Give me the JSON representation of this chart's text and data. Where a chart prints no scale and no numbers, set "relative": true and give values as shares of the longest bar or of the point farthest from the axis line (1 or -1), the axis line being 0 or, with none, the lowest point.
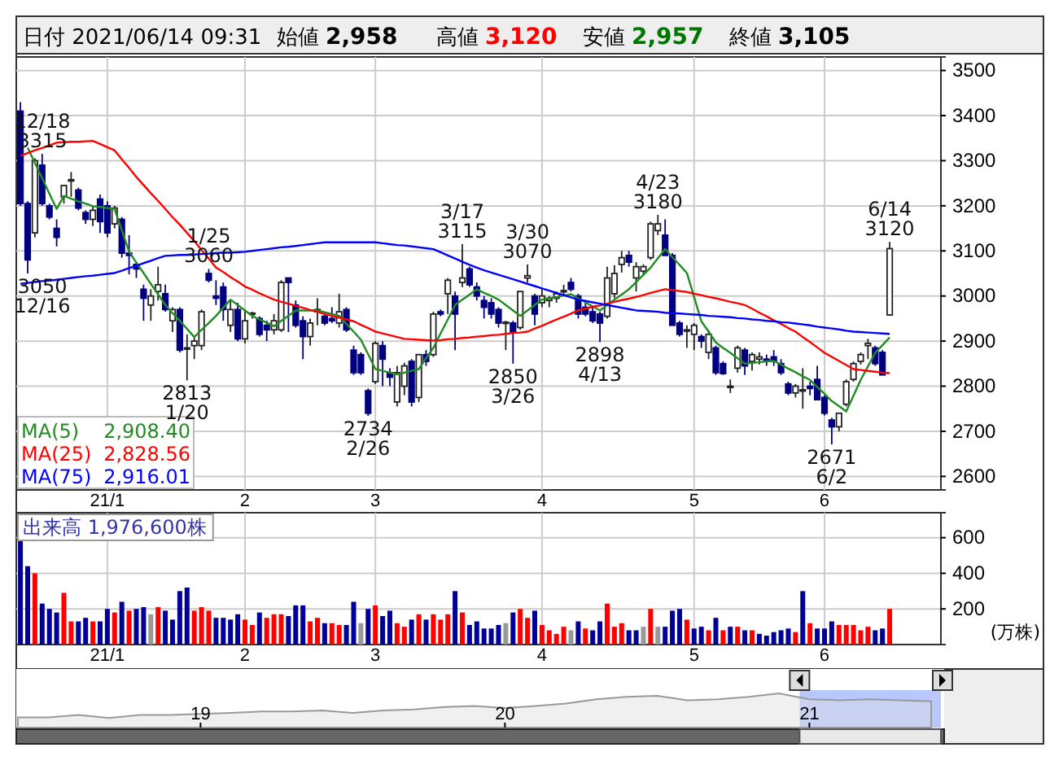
{
  "chart_data": [
    {
      "type": "candlestick",
      "title": "日付 2021/06/14 09:31",
      "colors": [
        "#000080",
        "#000080",
        "#ffffff",
        "#000080",
        "#000080",
        "#000080",
        "#ffffff",
        "#ffffff",
        "#000080",
        "#000080",
        "#ffffff",
        "#000080",
        "#000080",
        "#ffffff",
        "#000080",
        "#000080",
        "#000080",
        "#000080",
        "#ffffff",
        "#ffffff",
        "#000080",
        "#ffffff",
        "#000080",
        "#ffffff",
        "#ffffff",
        "#ffffff",
        "#000080",
        "#000080",
        "#000080",
        "#ffffff",
        "#000080",
        "#ffffff",
        "#ffffff",
        "#000080",
        "#000080",
        "#ffffff",
        "#ffffff",
        "#000080",
        "#000080",
        "#000080",
        "#ffffff",
        "#ffffff",
        "#000080",
        "#000080",
        "#ffffff",
        "#000080",
        "#000080",
        "#000080",
        "#000080",
        "#ffffff",
        "#000080",
        "#000080",
        "#ffffff",
        "#ffffff",
        "#000080",
        "#ffffff",
        "#000080",
        "#ffffff",
        "#000080",
        "#ffffff",
        "#000080",
        "#ffffff",
        "#000080",
        "#000080",
        "#000080",
        "#000080",
        "#000080",
        "#ffffff",
        "#000080",
        "#ffffff",
        "#ffffff",
        "#000080",
        "#ffffff",
        "#ffffff",
        "#ffffff",
        "#ffffff",
        "#000080",
        "#000080",
        "#000080",
        "#000080",
        "#000080",
        "#ffffff",
        "#ffffff",
        "#ffffff",
        "#000080",
        "#ffffff",
        "#ffffff",
        "#ffffff",
        "#ffffff",
        "#000080",
        "#000080",
        "#000080",
        "#ffffff",
        "#ffffff",
        "#000080",
        "#ffffff",
        "#000080",
        "#000080",
        "#ffffff",
        "#ffffff",
        "#000080",
        "#ffffff",
        "#ffffff",
        "#000080",
        "#000080",
        "#000080",
        "#000080",
        "#ffffff",
        "#ffffff",
        "#000080",
        "#000080",
        "#000080",
        "#000080",
        "#ffffff",
        "#ffffff",
        "#ffffff",
        "#ffffff",
        "#ffffff",
        "#000080",
        "#000080",
        "#ffffff"
      ],
      "categories": [
        null,
        null,
        null,
        null,
        null,
        null,
        null,
        null,
        null,
        null,
        null,
        null,
        "21/1",
        null,
        null,
        null,
        null,
        null,
        null,
        null,
        null,
        null,
        null,
        null,
        null,
        null,
        null,
        null,
        null,
        null,
        null,
        "2",
        null,
        null,
        null,
        null,
        null,
        null,
        null,
        null,
        null,
        null,
        null,
        null,
        null,
        null,
        null,
        null,
        null,
        "3",
        null,
        null,
        null,
        null,
        null,
        null,
        null,
        null,
        null,
        null,
        null,
        null,
        null,
        null,
        null,
        null,
        null,
        null,
        null,
        null,
        null,
        null,
        "4",
        null,
        null,
        null,
        null,
        null,
        null,
        null,
        null,
        null,
        null,
        null,
        null,
        null,
        null,
        null,
        null,
        null,
        null,
        null,
        null,
        "5",
        null,
        null,
        null,
        null,
        null,
        null,
        null,
        null,
        null,
        null,
        null,
        null,
        null,
        null,
        null,
        null,
        null,
        "6",
        null,
        null,
        null,
        null,
        null,
        null,
        null,
        null,
        null
      ],
      "ohlc": [
        [
          3410,
          3430,
          3200,
          3205
        ],
        [
          3205,
          3210,
          3050,
          3080
        ],
        [
          3140,
          3305,
          3130,
          3300
        ],
        [
          3290,
          3315,
          3200,
          3205
        ],
        [
          3200,
          3205,
          3170,
          3175
        ],
        [
          3150,
          3170,
          3110,
          3130
        ],
        [
          3220,
          3245,
          3205,
          3245
        ],
        [
          3255,
          3275,
          3220,
          3258
        ],
        [
          3235,
          3240,
          3190,
          3195
        ],
        [
          3185,
          3190,
          3160,
          3170
        ],
        [
          3170,
          3200,
          3155,
          3190
        ],
        [
          3215,
          3225,
          3140,
          3165
        ],
        [
          3200,
          3210,
          3130,
          3140
        ],
        [
          3160,
          3200,
          3150,
          3195
        ],
        [
          3170,
          3175,
          3085,
          3095
        ],
        [
          3095,
          3135,
          3048,
          3090
        ],
        [
          3070,
          3075,
          3040,
          3060
        ],
        [
          3015,
          3025,
          2945,
          2995
        ],
        [
          2980,
          3015,
          2945,
          3000
        ],
        [
          3010,
          3065,
          2990,
          3025
        ],
        [
          3005,
          3025,
          2965,
          2970
        ],
        [
          2945,
          2975,
          2920,
          2970
        ],
        [
          2970,
          2975,
          2875,
          2880
        ],
        [
          2885,
          2915,
          2813,
          2885
        ],
        [
          2890,
          2910,
          2860,
          2900
        ],
        [
          2890,
          2970,
          2880,
          2965
        ],
        [
          3050,
          3060,
          3030,
          3035
        ],
        [
          3000,
          3035,
          2980,
          2995
        ],
        [
          3020,
          3030,
          2945,
          2970
        ],
        [
          2935,
          2990,
          2920,
          2970
        ],
        [
          2970,
          2985,
          2900,
          2905
        ],
        [
          2905,
          2970,
          2895,
          2945
        ],
        [
          2960,
          2965,
          2950,
          2962
        ],
        [
          2950,
          2955,
          2910,
          2915
        ],
        [
          2935,
          2945,
          2900,
          2925
        ],
        [
          2925,
          2960,
          2915,
          2945
        ],
        [
          2925,
          3035,
          2920,
          3030
        ],
        [
          3040,
          3040,
          2920,
          3030
        ],
        [
          2980,
          2990,
          2930,
          2935
        ],
        [
          2945,
          2955,
          2860,
          2910
        ],
        [
          2910,
          2950,
          2890,
          2940
        ],
        [
          2965,
          2995,
          2935,
          2970
        ],
        [
          2955,
          2960,
          2935,
          2940
        ],
        [
          2950,
          2975,
          2940,
          2945
        ],
        [
          2940,
          3005,
          2930,
          2965
        ],
        [
          2970,
          2975,
          2920,
          2925
        ],
        [
          2880,
          2890,
          2825,
          2830
        ],
        [
          2870,
          2875,
          2825,
          2830
        ],
        [
          2790,
          2795,
          2734,
          2740
        ],
        [
          2810,
          2900,
          2805,
          2895
        ],
        [
          2890,
          2900,
          2800,
          2860
        ],
        [
          2830,
          2840,
          2800,
          2820
        ],
        [
          2765,
          2845,
          2755,
          2830
        ],
        [
          2800,
          2852,
          2780,
          2845
        ],
        [
          2855,
          2860,
          2755,
          2765
        ],
        [
          2775,
          2870,
          2765,
          2870
        ],
        [
          2870,
          2880,
          2845,
          2855
        ],
        [
          2870,
          2965,
          2865,
          2960
        ],
        [
          2965,
          2970,
          2955,
          2960
        ],
        [
          3005,
          3040,
          2960,
          3035
        ],
        [
          3000,
          3010,
          2880,
          2960
        ],
        [
          3030,
          3115,
          3020,
          3040
        ],
        [
          3060,
          3065,
          3020,
          3025
        ],
        [
          3020,
          3030,
          2990,
          3000
        ],
        [
          2990,
          3000,
          2950,
          2975
        ],
        [
          2985,
          2995,
          2950,
          2960
        ],
        [
          2970,
          2975,
          2930,
          2940
        ],
        [
          2940,
          2945,
          2880,
          2942
        ],
        [
          2940,
          2945,
          2850,
          2920
        ],
        [
          2930,
          3010,
          2925,
          3010
        ],
        [
          3040,
          3070,
          3030,
          3045
        ],
        [
          3000,
          3005,
          2935,
          2960
        ],
        [
          2985,
          3015,
          2975,
          3000
        ],
        [
          2990,
          3000,
          2975,
          2995
        ],
        [
          2995,
          3010,
          2985,
          3005
        ],
        [
          3010,
          3025,
          3000,
          3012
        ],
        [
          3030,
          3040,
          3010,
          3015
        ],
        [
          3000,
          3005,
          2950,
          2960
        ],
        [
          2975,
          2985,
          2955,
          2960
        ],
        [
          2965,
          2975,
          2940,
          2945
        ],
        [
          2960,
          2965,
          2898,
          2940
        ],
        [
          2955,
          3065,
          2950,
          3040
        ],
        [
          3005,
          3068,
          2995,
          3050
        ],
        [
          3070,
          3100,
          3052,
          3085
        ],
        [
          3090,
          3100,
          3065,
          3075
        ],
        [
          3040,
          3075,
          3010,
          3065
        ],
        [
          3055,
          3070,
          3045,
          3065
        ],
        [
          3085,
          3165,
          3080,
          3160
        ],
        [
          3145,
          3180,
          3135,
          3160
        ],
        [
          3135,
          3170,
          3090,
          3090
        ],
        [
          3090,
          3095,
          2935,
          2935
        ],
        [
          2940,
          2945,
          2910,
          2915
        ],
        [
          2925,
          2935,
          2885,
          2925
        ],
        [
          2915,
          2940,
          2880,
          2935
        ],
        [
          2910,
          2915,
          2885,
          2900
        ],
        [
          2875,
          2925,
          2860,
          2915
        ],
        [
          2885,
          2890,
          2825,
          2830
        ],
        [
          2850,
          2855,
          2825,
          2828
        ],
        [
          2800,
          2815,
          2785,
          2800
        ],
        [
          2840,
          2890,
          2830,
          2885
        ],
        [
          2880,
          2885,
          2825,
          2845
        ],
        [
          2855,
          2875,
          2835,
          2870
        ],
        [
          2860,
          2875,
          2848,
          2865
        ],
        [
          2860,
          2870,
          2845,
          2855
        ],
        [
          2865,
          2880,
          2845,
          2855
        ],
        [
          2850,
          2860,
          2825,
          2830
        ],
        [
          2805,
          2810,
          2780,
          2785
        ],
        [
          2785,
          2805,
          2775,
          2800
        ],
        [
          2790,
          2840,
          2750,
          2792
        ],
        [
          2800,
          2810,
          2780,
          2795
        ],
        [
          2815,
          2845,
          2770,
          2770
        ],
        [
          2775,
          2780,
          2735,
          2740
        ],
        [
          2725,
          2730,
          2671,
          2710
        ],
        [
          2710,
          2740,
          2700,
          2740
        ],
        [
          2760,
          2815,
          2755,
          2810
        ],
        [
          2815,
          2855,
          2810,
          2850
        ],
        [
          2855,
          2875,
          2848,
          2870
        ],
        [
          2890,
          2905,
          2860,
          2895
        ],
        [
          2885,
          2890,
          2845,
          2850
        ],
        [
          2875,
          2880,
          2825,
          2825
        ],
        [
          2958,
          3120,
          2957,
          3105
        ]
      ],
      "series": [
        {
          "type": "line",
          "name": "MA(5) 2,908.40",
          "color": "#228b22",
          "values": [
            null,
            3329,
            3295,
            3261,
            3227,
            3193,
            3222,
            3216,
            3210,
            3205,
            3199,
            3197,
            3195,
            3193,
            3146,
            3098,
            3074,
            3051,
            3027,
            3004,
            2980,
            2962,
            2945,
            2927,
            2909,
            2925,
            2940,
            2956,
            2974,
            2992,
            2980,
            2968,
            2956,
            2948,
            2941,
            2933,
            2945,
            2956,
            2968,
            2968,
            2968,
            2968,
            2964,
            2960,
            2956,
            2938,
            2921,
            2903,
            2871,
            2838,
            2834,
            2830,
            2826,
            2830,
            2834,
            2838,
            2862,
            2885,
            2917,
            2948,
            2980,
            2992,
            3003,
            3015,
            3007,
            3000,
            2992,
            2980,
            2968,
            2956,
            2968,
            2980,
            2992,
            2995,
            2998,
            3001,
            3004,
            2995,
            2986,
            2977,
            2968,
            2980,
            2992,
            3003,
            3015,
            3031,
            3047,
            3063,
            3084,
            3104,
            3086,
            3069,
            3051,
            2998,
            2944,
            2921,
            2897,
            2885,
            2874,
            2862,
            2850,
            2852,
            2853,
            2855,
            2856,
            2848,
            2839,
            2831,
            2822,
            2814,
            2798,
            2783,
            2767,
            2756,
            2744,
            2779,
            2814,
            2844,
            2874,
            2891,
            2908
          ]
        },
        {
          "type": "line",
          "name": "MA(25) 2,828.56",
          "color": "#ff0000",
          "values": [
            3311,
            3317,
            3323,
            3328,
            3334,
            3340,
            3341,
            3342,
            3342,
            3343,
            3344,
            3337,
            3330,
            3323,
            3303,
            3284,
            3264,
            3246,
            3228,
            3211,
            3193,
            3175,
            3158,
            3140,
            3122,
            3102,
            3083,
            3063,
            3053,
            3042,
            3032,
            3021,
            3014,
            3006,
            2999,
            2992,
            2987,
            2983,
            2978,
            2974,
            2969,
            2965,
            2960,
            2956,
            2952,
            2948,
            2944,
            2936,
            2929,
            2921,
            2917,
            2913,
            2909,
            2905,
            2904,
            2903,
            2902,
            2901,
            2902,
            2904,
            2905,
            2907,
            2908,
            2910,
            2911,
            2913,
            2914,
            2916,
            2918,
            2919,
            2921,
            2928,
            2934,
            2941,
            2948,
            2954,
            2961,
            2968,
            2972,
            2976,
            2979,
            2983,
            2987,
            2991,
            2994,
            2998,
            3002,
            3007,
            3011,
            3015,
            3013,
            3011,
            3009,
            3005,
            3002,
            2998,
            2995,
            2991,
            2987,
            2984,
            2980,
            2972,
            2963,
            2955,
            2946,
            2938,
            2929,
            2921,
            2909,
            2898,
            2886,
            2874,
            2865,
            2856,
            2847,
            2838,
            2836,
            2834,
            2832,
            2830,
            2829
          ]
        },
        {
          "type": "line",
          "name": "MA(75) 2,916.01",
          "color": "#0000ff",
          "values": [
            3027,
            3029,
            3031,
            3033,
            3034,
            3036,
            3038,
            3040,
            3042,
            3044,
            3045,
            3047,
            3049,
            3051,
            3056,
            3062,
            3067,
            3073,
            3078,
            3084,
            3089,
            3090,
            3091,
            3091,
            3092,
            3093,
            3094,
            3095,
            3096,
            3096,
            3097,
            3098,
            3100,
            3102,
            3104,
            3106,
            3108,
            3109,
            3111,
            3113,
            3115,
            3117,
            3119,
            3119,
            3119,
            3119,
            3119,
            3119,
            3119,
            3119,
            3117,
            3115,
            3113,
            3112,
            3110,
            3108,
            3106,
            3104,
            3097,
            3090,
            3083,
            3076,
            3069,
            3063,
            3057,
            3052,
            3047,
            3042,
            3037,
            3032,
            3027,
            3022,
            3017,
            3012,
            3007,
            3002,
            2997,
            2992,
            2989,
            2986,
            2983,
            2980,
            2977,
            2974,
            2971,
            2968,
            2967,
            2966,
            2965,
            2963,
            2962,
            2961,
            2960,
            2959,
            2958,
            2956,
            2955,
            2954,
            2953,
            2951,
            2950,
            2948,
            2947,
            2945,
            2944,
            2942,
            2941,
            2939,
            2937,
            2935,
            2932,
            2930,
            2928,
            2926,
            2923,
            2921,
            2920,
            2919,
            2918,
            2917,
            2916
          ]
        }
      ],
      "ylim": [
        2570,
        3530
      ],
      "yticks": [
        2600,
        2700,
        2800,
        2900,
        3000,
        3100,
        3200,
        3300,
        3400,
        3500
      ],
      "grid": true,
      "legend": "bottom left",
      "annotations": [
        "始値 2,958",
        "高値 3,120",
        "安値 2,957",
        "終値 3,105",
        {
          "text": "12/18\n3315",
          "y": 3315
        },
        {
          "text": "3050\n12/16",
          "y": 3050
        },
        {
          "text": "1/25\n3060",
          "y": 3060
        },
        {
          "text": "2813\n1/20",
          "y": 2813
        },
        {
          "text": "2734\n2/26",
          "y": 2734
        },
        {
          "text": "3/17\n3115",
          "y": 3115
        },
        {
          "text": "3/30\n3070",
          "y": 3070
        },
        {
          "text": "2850\n3/26",
          "y": 2850
        },
        {
          "text": "2898\n4/13",
          "y": 2898
        },
        {
          "text": "4/23\n3180",
          "y": 3180
        },
        {
          "text": "2671\n6/2",
          "y": 2671
        },
        {
          "text": "6/14\n3120",
          "y": 3120
        }
      ]
    },
    {
      "type": "bar",
      "title": "出来高 1,976,600株",
      "ylabel": "(万株)",
      "categories": [
        null,
        null,
        null,
        null,
        null,
        null,
        null,
        null,
        null,
        null,
        null,
        null,
        "21/1",
        null,
        null,
        null,
        null,
        null,
        null,
        null,
        null,
        null,
        null,
        null,
        null,
        null,
        null,
        null,
        null,
        null,
        null,
        "2",
        null,
        null,
        null,
        null,
        null,
        null,
        null,
        null,
        null,
        null,
        null,
        null,
        null,
        null,
        null,
        null,
        null,
        "3",
        null,
        null,
        null,
        null,
        null,
        null,
        null,
        null,
        null,
        null,
        null,
        null,
        null,
        null,
        null,
        null,
        null,
        null,
        null,
        null,
        null,
        null,
        "4",
        null,
        null,
        null,
        null,
        null,
        null,
        null,
        null,
        null,
        null,
        null,
        null,
        null,
        null,
        null,
        null,
        null,
        null,
        null,
        null,
        "5",
        null,
        null,
        null,
        null,
        null,
        null,
        null,
        null,
        null,
        null,
        null,
        null,
        null,
        null,
        null,
        null,
        null,
        "6",
        null,
        null,
        null,
        null,
        null,
        null,
        null,
        null,
        null
      ],
      "values": [
        600,
        440,
        400,
        230,
        200,
        180,
        290,
        130,
        130,
        150,
        130,
        130,
        200,
        180,
        240,
        190,
        200,
        210,
        170,
        210,
        190,
        140,
        300,
        320,
        190,
        210,
        190,
        150,
        150,
        140,
        170,
        140,
        110,
        180,
        150,
        170,
        170,
        160,
        220,
        220,
        130,
        150,
        120,
        120,
        110,
        110,
        240,
        120,
        200,
        220,
        160,
        190,
        120,
        100,
        140,
        170,
        140,
        170,
        140,
        170,
        300,
        180,
        110,
        130,
        90,
        90,
        110,
        120,
        180,
        200,
        150,
        190,
        110,
        80,
        60,
        100,
        80,
        130,
        90,
        80,
        130,
        230,
        100,
        120,
        80,
        80,
        100,
        200,
        100,
        100,
        190,
        200,
        140,
        90,
        100,
        80,
        150,
        80,
        100,
        100,
        80,
        80,
        60,
        50,
        70,
        80,
        90,
        70,
        300,
        120,
        90,
        90,
        130,
        110,
        110,
        110,
        80,
        100,
        80,
        90,
        200
      ],
      "colors": [
        "#000099",
        "#000099",
        "#ff0000",
        "#000099",
        "#000099",
        "#000099",
        "#ff0000",
        "#ff0000",
        "#000099",
        "#000099",
        "#ff0000",
        "#000099",
        "#000099",
        "#ff0000",
        "#000099",
        "#ff0000",
        "#000099",
        "#000099",
        "#999999",
        "#ff0000",
        "#000099",
        "#000099",
        "#000099",
        "#000099",
        "#ff0000",
        "#ff0000",
        "#ff0000",
        "#000099",
        "#000099",
        "#000099",
        "#000099",
        "#ff0000",
        "#ff0000",
        "#000099",
        "#ff0000",
        "#ff0000",
        "#ff0000",
        "#000099",
        "#000099",
        "#000099",
        "#ff0000",
        "#ff0000",
        "#000099",
        "#ff0000",
        "#ff0000",
        "#000099",
        "#000099",
        "#999999",
        "#000099",
        "#ff0000",
        "#000099",
        "#000099",
        "#ff0000",
        "#ff0000",
        "#000099",
        "#ff0000",
        "#000099",
        "#ff0000",
        "#ff0000",
        "#ff0000",
        "#000099",
        "#ff0000",
        "#000099",
        "#000099",
        "#000099",
        "#000099",
        "#000099",
        "#999999",
        "#000099",
        "#ff0000",
        "#ff0000",
        "#000099",
        "#ff0000",
        "#ff0000",
        "#ff0000",
        "#ff0000",
        "#999999",
        "#000099",
        "#ff0000",
        "#000099",
        "#000099",
        "#ff0000",
        "#ff0000",
        "#ff0000",
        "#000099",
        "#000099",
        "#999999",
        "#ff0000",
        "#999999",
        "#000099",
        "#000099",
        "#000099",
        "#ff0000",
        "#000099",
        "#000099",
        "#ff0000",
        "#000099",
        "#ff0000",
        "#000099",
        "#ff0000",
        "#000099",
        "#ff0000",
        "#000099",
        "#000099",
        "#000099",
        "#000099",
        "#000099",
        "#ff0000",
        "#000099",
        "#ff0000",
        "#000099",
        "#000099",
        "#000099",
        "#ff0000",
        "#ff0000",
        "#ff0000",
        "#ff0000",
        "#ff0000",
        "#000099",
        "#000099",
        "#ff0000"
      ],
      "ylim": [
        0,
        740
      ],
      "yticks": [
        200,
        400,
        600
      ],
      "grid": true
    },
    {
      "type": "area",
      "relative": true,
      "color": "#999999",
      "categories": [
        null,
        null,
        null,
        null,
        null,
        null,
        "19",
        null,
        null,
        null,
        null,
        null,
        null,
        null,
        null,
        null,
        "20",
        null,
        null,
        null,
        null,
        null,
        null,
        null,
        null,
        null,
        "21",
        null,
        null,
        null,
        null
      ],
      "values": [
        0.3,
        0.3,
        0.37,
        0.28,
        0.37,
        0.37,
        0.4,
        0.43,
        0.47,
        0.47,
        0.5,
        0.43,
        0.5,
        0.53,
        0.6,
        0.63,
        0.57,
        0.63,
        0.7,
        0.83,
        0.9,
        0.93,
        0.8,
        0.83,
        0.9,
        1,
        0.83,
        0.8,
        0.83,
        0.8,
        0.77
      ]
    }
  ]
}
